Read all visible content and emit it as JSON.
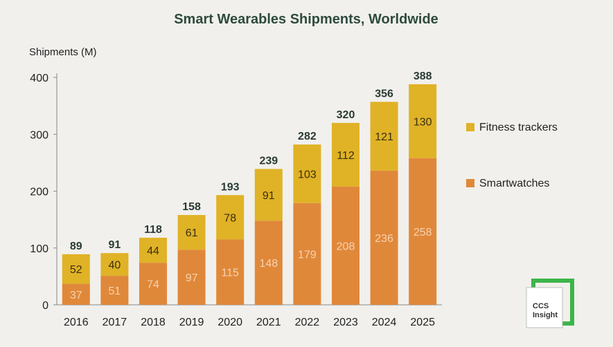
{
  "chart_data": {
    "type": "bar",
    "stacked": true,
    "title": "Smart Wearables Shipments, Worldwide",
    "xlabel": "",
    "ylabel": "Shipments (M)",
    "ylim": [
      0,
      400
    ],
    "yticks": [
      "0",
      "100",
      "200",
      "300",
      "400"
    ],
    "categories": [
      "2016",
      "2017",
      "2018",
      "2019",
      "2020",
      "2021",
      "2022",
      "2023",
      "2024",
      "2025"
    ],
    "series": [
      {
        "name": "Smartwatches",
        "color": "#e0883a",
        "label_color": "#f6d3b0",
        "values": [
          37,
          51,
          74,
          97,
          115,
          148,
          179,
          208,
          236,
          258
        ]
      },
      {
        "name": "Fitness trackers",
        "color": "#e0b226",
        "label_color": "#3a2f10",
        "values": [
          52,
          40,
          44,
          61,
          78,
          91,
          103,
          112,
          121,
          130
        ]
      }
    ],
    "totals": [
      89,
      91,
      118,
      158,
      193,
      239,
      282,
      320,
      356,
      388
    ],
    "legend_position": "right",
    "grid": false
  },
  "logo": {
    "line1": "CCS",
    "line2": "Insight",
    "color": "#3cb54a"
  }
}
